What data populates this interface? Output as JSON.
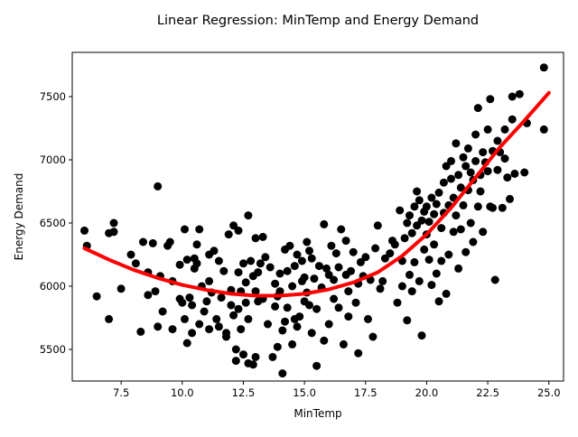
{
  "chart_data": {
    "type": "scatter",
    "title": "Linear Regression: MinTemp and Energy Demand",
    "xlabel": "MinTemp",
    "ylabel": "Energy Demand",
    "xlim": [
      5.5,
      25.6
    ],
    "ylim": [
      5250,
      7850
    ],
    "x_ticks": [
      {
        "value": 7.5,
        "label": "7.5"
      },
      {
        "value": 10.0,
        "label": "10.0"
      },
      {
        "value": 12.5,
        "label": "12.5"
      },
      {
        "value": 15.0,
        "label": "15.0"
      },
      {
        "value": 17.5,
        "label": "17.5"
      },
      {
        "value": 20.0,
        "label": "20.0"
      },
      {
        "value": 22.5,
        "label": "22.5"
      },
      {
        "value": 25.0,
        "label": "25.0"
      }
    ],
    "y_ticks": [
      {
        "value": 5500,
        "label": "5500"
      },
      {
        "value": 6000,
        "label": "6000"
      },
      {
        "value": 6500,
        "label": "6500"
      },
      {
        "value": 7000,
        "label": "7000"
      },
      {
        "value": 7500,
        "label": "7500"
      }
    ],
    "point_color": "#000000",
    "fit_color": "#ff0000",
    "points": [
      [
        6.0,
        6440
      ],
      [
        6.1,
        6320
      ],
      [
        6.5,
        5920
      ],
      [
        7.0,
        5740
      ],
      [
        7.0,
        6420
      ],
      [
        7.2,
        6500
      ],
      [
        7.2,
        6430
      ],
      [
        7.5,
        5980
      ],
      [
        7.9,
        6250
      ],
      [
        8.1,
        6180
      ],
      [
        8.3,
        5640
      ],
      [
        8.4,
        6350
      ],
      [
        8.6,
        6110
      ],
      [
        8.6,
        5930
      ],
      [
        8.8,
        6340
      ],
      [
        8.9,
        5960
      ],
      [
        9.0,
        6790
      ],
      [
        9.0,
        5680
      ],
      [
        9.1,
        6080
      ],
      [
        9.2,
        5800
      ],
      [
        9.4,
        6320
      ],
      [
        9.5,
        6350
      ],
      [
        9.6,
        6040
      ],
      [
        9.6,
        5660
      ],
      [
        9.9,
        5900
      ],
      [
        9.9,
        6170
      ],
      [
        10.0,
        5870
      ],
      [
        10.1,
        6450
      ],
      [
        10.1,
        5740
      ],
      [
        10.2,
        6210
      ],
      [
        10.2,
        5550
      ],
      [
        10.3,
        5910
      ],
      [
        10.4,
        5850
      ],
      [
        10.4,
        5630
      ],
      [
        10.5,
        6140
      ],
      [
        10.5,
        6220
      ],
      [
        10.6,
        6330
      ],
      [
        10.6,
        6180
      ],
      [
        10.7,
        5700
      ],
      [
        10.7,
        6450
      ],
      [
        10.8,
        6000
      ],
      [
        10.9,
        5800
      ],
      [
        11.0,
        5880
      ],
      [
        11.1,
        6250
      ],
      [
        11.1,
        5660
      ],
      [
        11.1,
        6040
      ],
      [
        11.2,
        5950
      ],
      [
        11.3,
        6280
      ],
      [
        11.4,
        5740
      ],
      [
        11.5,
        5680
      ],
      [
        11.5,
        6200
      ],
      [
        11.6,
        5910
      ],
      [
        11.7,
        6120
      ],
      [
        11.8,
        5630
      ],
      [
        11.8,
        5600
      ],
      [
        11.9,
        6410
      ],
      [
        12.0,
        5850
      ],
      [
        12.0,
        5970
      ],
      [
        12.1,
        6480
      ],
      [
        12.1,
        5770
      ],
      [
        12.2,
        5500
      ],
      [
        12.2,
        5410
      ],
      [
        12.3,
        6440
      ],
      [
        12.3,
        5820
      ],
      [
        12.3,
        6110
      ],
      [
        12.4,
        5660
      ],
      [
        12.4,
        5960
      ],
      [
        12.5,
        6180
      ],
      [
        12.5,
        5460
      ],
      [
        12.6,
        6030
      ],
      [
        12.6,
        5870
      ],
      [
        12.7,
        6560
      ],
      [
        12.7,
        5390
      ],
      [
        12.7,
        5740
      ],
      [
        12.8,
        6200
      ],
      [
        12.9,
        6080
      ],
      [
        12.9,
        5380
      ],
      [
        13.0,
        5440
      ],
      [
        13.0,
        6380
      ],
      [
        13.0,
        5960
      ],
      [
        13.1,
        6110
      ],
      [
        13.1,
        5880
      ],
      [
        13.2,
        6180
      ],
      [
        13.3,
        6390
      ],
      [
        13.3,
        5900
      ],
      [
        13.4,
        6230
      ],
      [
        13.5,
        5700
      ],
      [
        13.6,
        6150
      ],
      [
        13.7,
        5440
      ],
      [
        13.8,
        6020
      ],
      [
        13.8,
        5840
      ],
      [
        13.9,
        5920
      ],
      [
        13.9,
        5520
      ],
      [
        14.0,
        6100
      ],
      [
        14.0,
        5960
      ],
      [
        14.1,
        5650
      ],
      [
        14.1,
        5310
      ],
      [
        14.2,
        5720
      ],
      [
        14.2,
        6290
      ],
      [
        14.3,
        6120
      ],
      [
        14.3,
        5830
      ],
      [
        14.4,
        6320
      ],
      [
        14.5,
        5540
      ],
      [
        14.5,
        6000
      ],
      [
        14.6,
        6160
      ],
      [
        14.6,
        5740
      ],
      [
        14.7,
        5680
      ],
      [
        14.7,
        6250
      ],
      [
        14.8,
        5760
      ],
      [
        14.9,
        6040
      ],
      [
        14.9,
        6200
      ],
      [
        15.0,
        5880
      ],
      [
        15.0,
        6070
      ],
      [
        15.1,
        5950
      ],
      [
        15.1,
        6350
      ],
      [
        15.2,
        5850
      ],
      [
        15.2,
        6280
      ],
      [
        15.3,
        6220
      ],
      [
        15.3,
        5630
      ],
      [
        15.4,
        6060
      ],
      [
        15.5,
        5820
      ],
      [
        15.5,
        5370
      ],
      [
        15.6,
        6160
      ],
      [
        15.7,
        5990
      ],
      [
        15.8,
        6490
      ],
      [
        15.8,
        5570
      ],
      [
        15.9,
        6140
      ],
      [
        16.0,
        5700
      ],
      [
        16.0,
        6090
      ],
      [
        16.1,
        6320
      ],
      [
        16.2,
        6050
      ],
      [
        16.2,
        5900
      ],
      [
        16.3,
        6260
      ],
      [
        16.4,
        6150
      ],
      [
        16.4,
        5830
      ],
      [
        16.5,
        6450
      ],
      [
        16.6,
        5540
      ],
      [
        16.7,
        6360
      ],
      [
        16.7,
        6090
      ],
      [
        16.8,
        5960
      ],
      [
        16.8,
        5760
      ],
      [
        16.9,
        6120
      ],
      [
        17.0,
        6270
      ],
      [
        17.1,
        5870
      ],
      [
        17.2,
        5470
      ],
      [
        17.2,
        6020
      ],
      [
        17.3,
        6190
      ],
      [
        17.4,
        6080
      ],
      [
        17.5,
        6230
      ],
      [
        17.6,
        5740
      ],
      [
        17.7,
        6050
      ],
      [
        17.8,
        5600
      ],
      [
        17.9,
        6300
      ],
      [
        18.0,
        6480
      ],
      [
        18.1,
        5980
      ],
      [
        18.2,
        6040
      ],
      [
        18.3,
        6220
      ],
      [
        18.5,
        6260
      ],
      [
        18.6,
        6360
      ],
      [
        18.7,
        6330
      ],
      [
        18.8,
        5870
      ],
      [
        18.9,
        6600
      ],
      [
        19.0,
        6200
      ],
      [
        19.0,
        6000
      ],
      [
        19.1,
        6380
      ],
      [
        19.2,
        5730
      ],
      [
        19.2,
        6500
      ],
      [
        19.3,
        6090
      ],
      [
        19.3,
        6560
      ],
      [
        19.4,
        6420
      ],
      [
        19.4,
        5960
      ],
      [
        19.5,
        6630
      ],
      [
        19.5,
        6190
      ],
      [
        19.6,
        6750
      ],
      [
        19.6,
        6480
      ],
      [
        19.7,
        6040
      ],
      [
        19.7,
        6680
      ],
      [
        19.8,
        6520
      ],
      [
        19.8,
        5610
      ],
      [
        19.9,
        6290
      ],
      [
        19.9,
        6590
      ],
      [
        20.0,
        6410
      ],
      [
        20.0,
        6630
      ],
      [
        20.1,
        6210
      ],
      [
        20.1,
        6510
      ],
      [
        20.2,
        6700
      ],
      [
        20.2,
        6010
      ],
      [
        20.3,
        6330
      ],
      [
        20.3,
        6570
      ],
      [
        20.4,
        6650
      ],
      [
        20.4,
        6100
      ],
      [
        20.5,
        5880
      ],
      [
        20.5,
        6740
      ],
      [
        20.6,
        6460
      ],
      [
        20.6,
        6200
      ],
      [
        20.7,
        6820
      ],
      [
        20.7,
        6580
      ],
      [
        20.8,
        5940
      ],
      [
        20.8,
        6950
      ],
      [
        20.9,
        6640
      ],
      [
        20.9,
        6250
      ],
      [
        21.0,
        6850
      ],
      [
        21.0,
        6990
      ],
      [
        21.1,
        6430
      ],
      [
        21.1,
        6700
      ],
      [
        21.2,
        7130
      ],
      [
        21.2,
        6560
      ],
      [
        21.3,
        6880
      ],
      [
        21.3,
        6140
      ],
      [
        21.4,
        6780
      ],
      [
        21.4,
        6450
      ],
      [
        21.5,
        7020
      ],
      [
        21.5,
        6640
      ],
      [
        21.6,
        6950
      ],
      [
        21.6,
        6270
      ],
      [
        21.7,
        6760
      ],
      [
        21.7,
        7090
      ],
      [
        21.8,
        6500
      ],
      [
        21.8,
        6900
      ],
      [
        21.9,
        6840
      ],
      [
        21.9,
        6350
      ],
      [
        22.0,
        6990
      ],
      [
        22.0,
        7200
      ],
      [
        22.1,
        7410
      ],
      [
        22.1,
        6630
      ],
      [
        22.2,
        6750
      ],
      [
        22.2,
        6880
      ],
      [
        22.3,
        7060
      ],
      [
        22.3,
        6430
      ],
      [
        22.4,
        6980
      ],
      [
        22.5,
        7240
      ],
      [
        22.5,
        6910
      ],
      [
        22.6,
        6630
      ],
      [
        22.6,
        7480
      ],
      [
        22.7,
        7070
      ],
      [
        22.7,
        6620
      ],
      [
        22.8,
        6050
      ],
      [
        22.9,
        6920
      ],
      [
        22.9,
        7150
      ],
      [
        23.0,
        7060
      ],
      [
        23.1,
        6620
      ],
      [
        23.2,
        7240
      ],
      [
        23.2,
        7010
      ],
      [
        23.3,
        6860
      ],
      [
        23.4,
        6690
      ],
      [
        23.5,
        7500
      ],
      [
        23.5,
        7320
      ],
      [
        23.6,
        6890
      ],
      [
        23.8,
        7520
      ],
      [
        24.0,
        6900
      ],
      [
        24.1,
        7290
      ],
      [
        24.8,
        7730
      ],
      [
        24.8,
        7240
      ]
    ],
    "fit_curve": [
      [
        6.0,
        6300
      ],
      [
        7.0,
        6210
      ],
      [
        8.0,
        6130
      ],
      [
        9.0,
        6065
      ],
      [
        10.0,
        6010
      ],
      [
        11.0,
        5970
      ],
      [
        12.0,
        5940
      ],
      [
        13.0,
        5925
      ],
      [
        14.0,
        5925
      ],
      [
        15.0,
        5940
      ],
      [
        16.0,
        5975
      ],
      [
        17.0,
        6030
      ],
      [
        18.0,
        6110
      ],
      [
        19.0,
        6240
      ],
      [
        20.0,
        6410
      ],
      [
        21.0,
        6620
      ],
      [
        22.0,
        6860
      ],
      [
        23.0,
        7100
      ],
      [
        24.0,
        7310
      ],
      [
        25.0,
        7530
      ]
    ]
  }
}
